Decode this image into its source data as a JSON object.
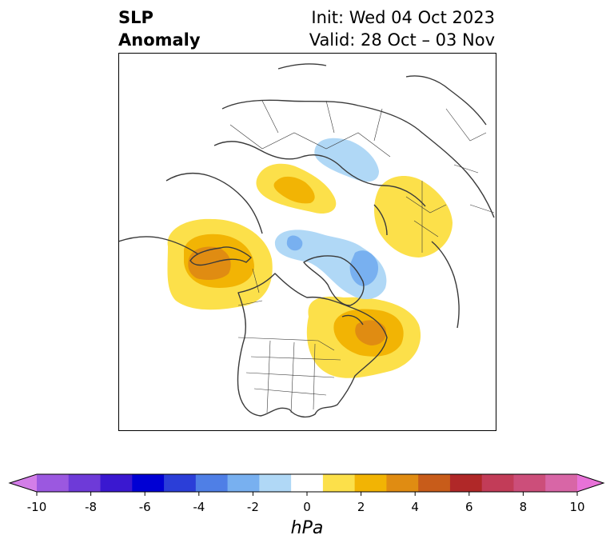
{
  "title": {
    "left_line1": "SLP",
    "left_line2": "Anomaly",
    "init": "Init: Wed 04 Oct 2023",
    "valid": "Valid: 28 Oct – 03 Nov"
  },
  "colorbar": {
    "unit": "hPa",
    "tick_labels": [
      "-10",
      "-8",
      "-6",
      "-4",
      "-2",
      "0",
      "2",
      "4",
      "6",
      "8",
      "10"
    ],
    "colors": [
      "#d37ee8",
      "#9b58e0",
      "#6e3ad8",
      "#3a18d0",
      "#0000d4",
      "#2b3ed8",
      "#4f7fe6",
      "#78b0f0",
      "#b0d8f6",
      "#ffffff",
      "#fce04a",
      "#f2b404",
      "#e08c12",
      "#c85c1a",
      "#b02828",
      "#c23c58",
      "#cc4e7a",
      "#d866a6",
      "#e872d8"
    ]
  },
  "map": {
    "colors": {
      "light_blue": "#b0d8f6",
      "mid_blue": "#78b0f0",
      "yellow": "#fce04a",
      "gold": "#f2b404",
      "orange": "#e08c12",
      "coast": "#3a3a3a"
    }
  }
}
